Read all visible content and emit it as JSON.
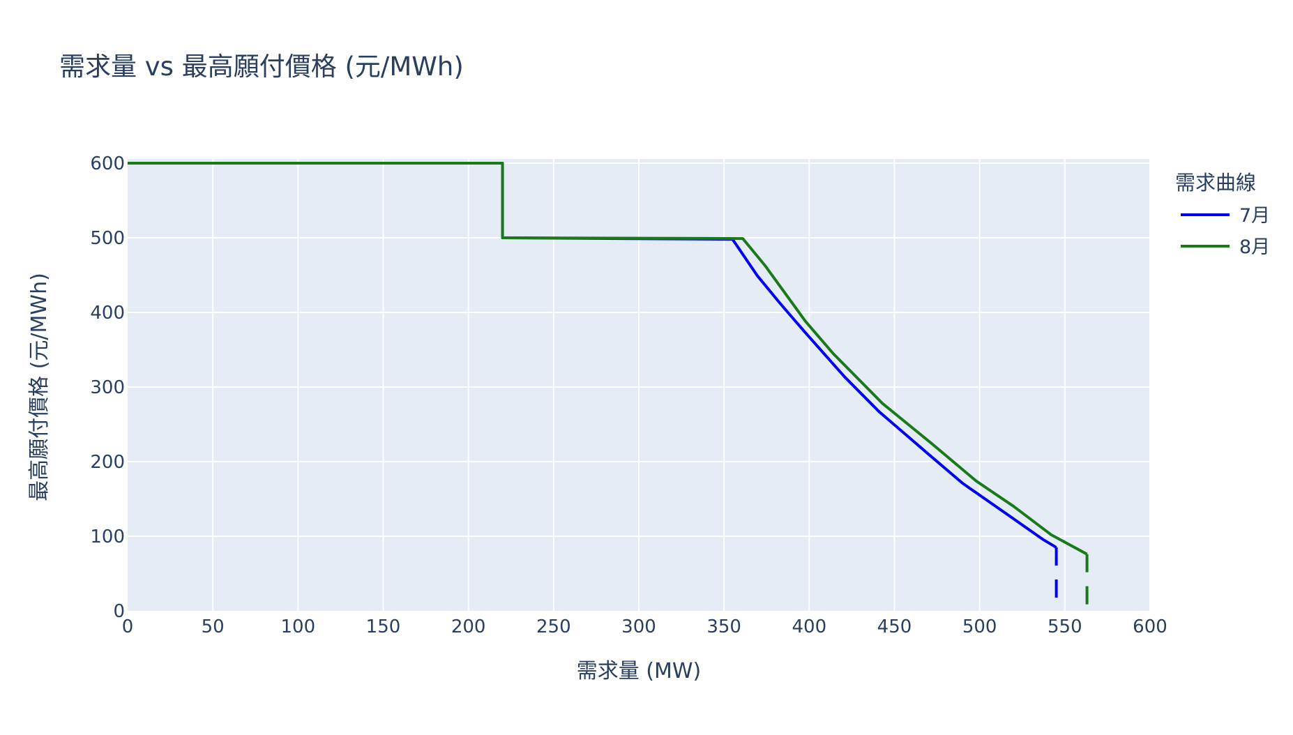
{
  "chart_data": {
    "type": "line",
    "title": "需求量 vs 最高願付價格 (元/MWh)",
    "xlabel": "需求量 (MW)",
    "ylabel": "最高願付價格 (元/MWh)",
    "xlim": [
      0,
      600
    ],
    "ylim": [
      0,
      600
    ],
    "xticks": [
      0,
      50,
      100,
      150,
      200,
      250,
      300,
      350,
      400,
      450,
      500,
      550,
      600
    ],
    "yticks": [
      0,
      100,
      200,
      300,
      400,
      500,
      600
    ],
    "grid": true,
    "background": "#e5ecf6",
    "legend": {
      "title": "需求曲線",
      "placement": "right-top"
    },
    "series": [
      {
        "name": "7月",
        "color": "#0000ee",
        "x": [
          0,
          220,
          220,
          355,
          369.6,
          382.6,
          397.3,
          421,
          441,
          470,
          490,
          517,
          537,
          545
        ],
        "y": [
          600,
          600,
          500,
          498,
          449,
          413,
          374,
          313,
          267,
          210,
          171,
          128,
          96,
          85
        ],
        "dash_drop": {
          "x": 545,
          "y_from": 85,
          "y_to": 0
        }
      },
      {
        "name": "8月",
        "color": "#1a7a1a",
        "x": [
          0,
          220,
          220,
          361,
          374,
          397.8,
          414,
          443,
          472,
          498,
          520,
          542,
          563
        ],
        "y": [
          600,
          600,
          500,
          499,
          463,
          388,
          345,
          278,
          224,
          174,
          140,
          102,
          76
        ],
        "dash_drop": {
          "x": 563,
          "y_from": 76,
          "y_to": 0
        }
      }
    ]
  }
}
